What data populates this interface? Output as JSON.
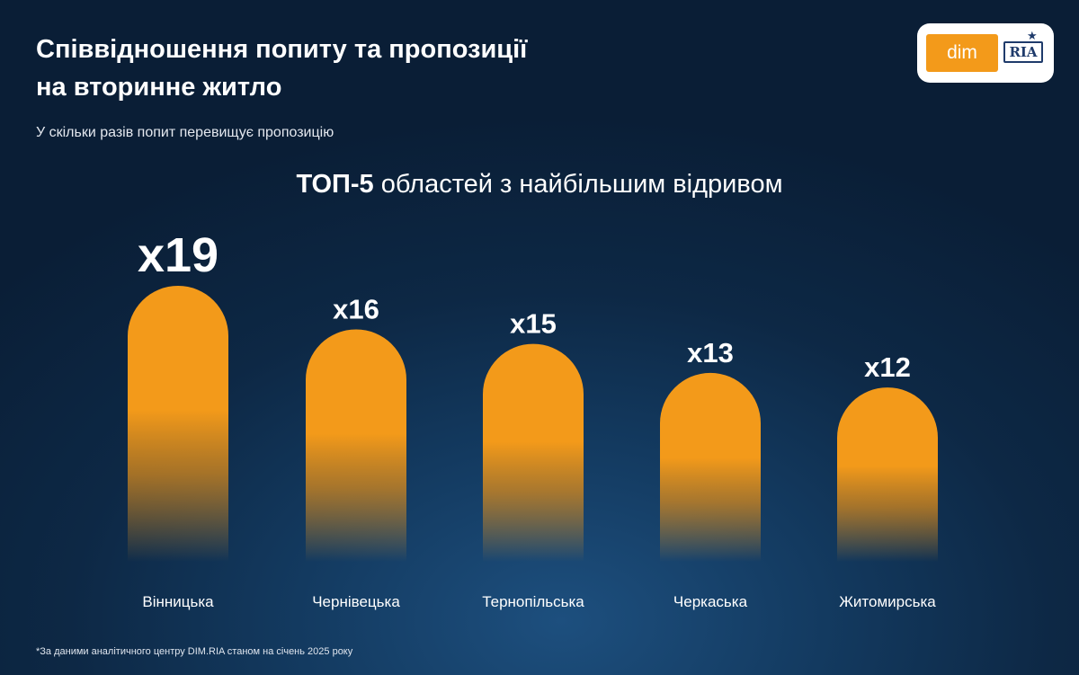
{
  "header": {
    "title_line1": "Співвідношення попиту та пропозиції",
    "title_line2": "на вторинне житло",
    "subtitle": "У скільки разів попит перевищує пропозицію"
  },
  "logo": {
    "dim": "dim",
    "ria": "RIA"
  },
  "heading": {
    "bold": "ТОП-5",
    "rest": " областей з найбільшим відривом"
  },
  "chart_data": {
    "type": "bar",
    "title": "ТОП-5 областей з найбільшим відривом",
    "categories": [
      "Вінницька",
      "Чернівецька",
      "Тернопільська",
      "Черкаська",
      "Житомирська"
    ],
    "values": [
      19,
      16,
      15,
      13,
      12
    ],
    "value_labels": [
      "x19",
      "x16",
      "x15",
      "x13",
      "x12"
    ],
    "bar_color": "#f39a1a",
    "grid": false
  },
  "footnote": "*За даними аналітичного центру DIM.RIA станом на січень 2025 року",
  "colors": {
    "accent": "#f39a1a",
    "background": "#0d2845"
  }
}
